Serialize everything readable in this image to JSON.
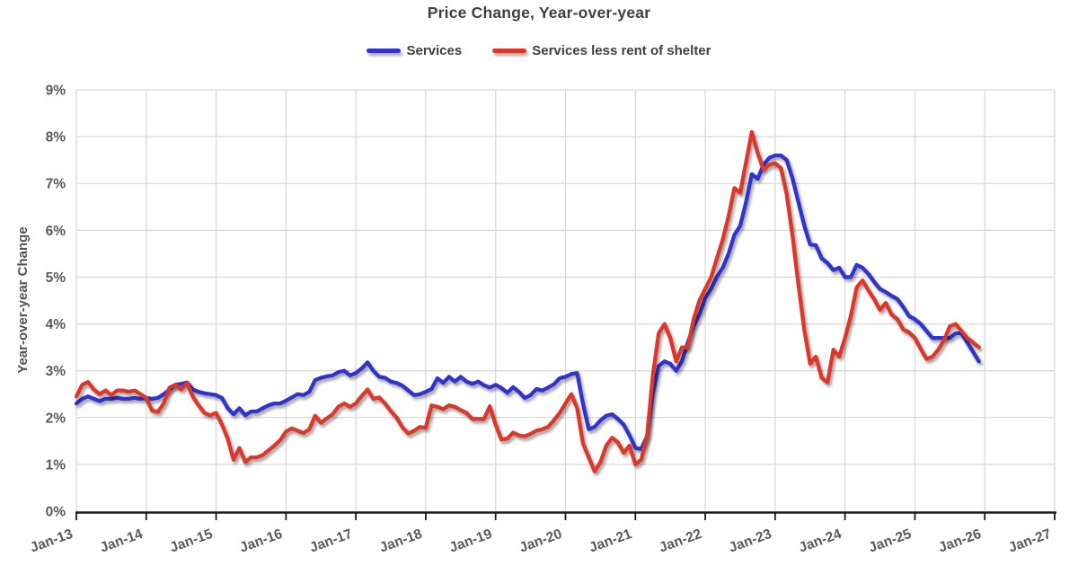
{
  "title": "Price Change, Year-over-year",
  "y_axis_title": "Year-over-year Change",
  "legend": [
    {
      "label": "Services",
      "color": "#3333cc"
    },
    {
      "label": "Services less rent of shelter",
      "color": "#d9372b"
    }
  ],
  "colors": {
    "gridline": "#d9d9d9",
    "axis_line": "#1a1a1a",
    "tick_label": "#595959",
    "title_text": "#3f3f3f"
  },
  "chart_data": {
    "type": "line",
    "title": "Price Change, Year-over-year",
    "xlabel": "",
    "ylabel": "Year-over-year Change",
    "grid": true,
    "legend_position": "top",
    "ylim": [
      0,
      9
    ],
    "y_tick_labels": [
      "0%",
      "1%",
      "2%",
      "3%",
      "4%",
      "5%",
      "6%",
      "7%",
      "8%",
      "9%"
    ],
    "x_tick_labels": [
      "Jan-13",
      "Jan-14",
      "Jan-15",
      "Jan-16",
      "Jan-17",
      "Jan-18",
      "Jan-19",
      "Jan-20",
      "Jan-21",
      "Jan-22",
      "Jan-23",
      "Jan-24",
      "Jan-25",
      "Jan-26",
      "Jan-27"
    ],
    "x_unit": "month",
    "x_start": "2013-01",
    "x_axis_end": "2027-01",
    "series": [
      {
        "name": "Services",
        "color": "#3333cc",
        "start": "2013-01",
        "values": [
          2.3,
          2.4,
          2.45,
          2.4,
          2.35,
          2.4,
          2.4,
          2.42,
          2.4,
          2.4,
          2.42,
          2.4,
          2.42,
          2.4,
          2.42,
          2.5,
          2.6,
          2.7,
          2.72,
          2.75,
          2.6,
          2.55,
          2.52,
          2.5,
          2.48,
          2.42,
          2.2,
          2.07,
          2.2,
          2.05,
          2.13,
          2.13,
          2.2,
          2.26,
          2.3,
          2.3,
          2.36,
          2.43,
          2.5,
          2.48,
          2.55,
          2.8,
          2.85,
          2.88,
          2.9,
          2.97,
          3.0,
          2.9,
          2.95,
          3.05,
          3.18,
          3.0,
          2.87,
          2.85,
          2.77,
          2.74,
          2.68,
          2.58,
          2.48,
          2.5,
          2.55,
          2.61,
          2.84,
          2.74,
          2.87,
          2.77,
          2.87,
          2.77,
          2.72,
          2.77,
          2.69,
          2.64,
          2.7,
          2.63,
          2.53,
          2.65,
          2.55,
          2.42,
          2.48,
          2.61,
          2.58,
          2.64,
          2.71,
          2.84,
          2.87,
          2.93,
          2.95,
          2.3,
          1.75,
          1.8,
          1.94,
          2.04,
          2.07,
          1.97,
          1.85,
          1.62,
          1.35,
          1.33,
          1.6,
          2.5,
          3.1,
          3.2,
          3.15,
          3.0,
          3.2,
          3.6,
          3.95,
          4.2,
          4.55,
          4.75,
          5.0,
          5.2,
          5.5,
          5.9,
          6.1,
          6.6,
          7.2,
          7.1,
          7.4,
          7.55,
          7.6,
          7.6,
          7.5,
          7.1,
          6.6,
          6.1,
          5.7,
          5.68,
          5.4,
          5.3,
          5.15,
          5.2,
          5.0,
          5.0,
          5.26,
          5.2,
          5.07,
          4.9,
          4.75,
          4.68,
          4.6,
          4.53,
          4.36,
          4.17,
          4.1,
          4.0,
          3.85,
          3.7,
          3.7,
          3.7,
          3.7,
          3.8,
          3.8,
          3.6,
          3.4,
          3.2
        ]
      },
      {
        "name": "Services less rent of shelter",
        "color": "#d9372b",
        "start": "2013-01",
        "values": [
          2.45,
          2.7,
          2.76,
          2.6,
          2.5,
          2.58,
          2.48,
          2.58,
          2.58,
          2.55,
          2.58,
          2.5,
          2.42,
          2.15,
          2.12,
          2.3,
          2.64,
          2.7,
          2.6,
          2.74,
          2.45,
          2.26,
          2.1,
          2.05,
          2.1,
          1.85,
          1.55,
          1.1,
          1.35,
          1.05,
          1.15,
          1.15,
          1.2,
          1.3,
          1.4,
          1.52,
          1.7,
          1.77,
          1.72,
          1.67,
          1.75,
          2.04,
          1.89,
          1.98,
          2.07,
          2.23,
          2.3,
          2.23,
          2.3,
          2.46,
          2.6,
          2.4,
          2.43,
          2.3,
          2.14,
          2.0,
          1.79,
          1.66,
          1.72,
          1.8,
          1.78,
          2.26,
          2.23,
          2.18,
          2.26,
          2.23,
          2.16,
          2.1,
          1.97,
          1.97,
          1.97,
          2.24,
          1.85,
          1.53,
          1.55,
          1.68,
          1.62,
          1.6,
          1.65,
          1.72,
          1.75,
          1.8,
          1.94,
          2.1,
          2.3,
          2.5,
          2.2,
          1.45,
          1.15,
          0.85,
          1.05,
          1.4,
          1.57,
          1.47,
          1.25,
          1.4,
          1.0,
          1.1,
          1.6,
          2.9,
          3.8,
          4.0,
          3.7,
          3.2,
          3.5,
          3.5,
          4.1,
          4.5,
          4.75,
          5.0,
          5.4,
          5.8,
          6.3,
          6.9,
          6.8,
          7.45,
          8.1,
          7.65,
          7.3,
          7.4,
          7.43,
          7.33,
          6.76,
          5.87,
          4.84,
          3.88,
          3.15,
          3.3,
          2.85,
          2.75,
          3.45,
          3.3,
          3.7,
          4.17,
          4.78,
          4.93,
          4.72,
          4.53,
          4.3,
          4.45,
          4.2,
          4.1,
          3.88,
          3.82,
          3.7,
          3.47,
          3.25,
          3.3,
          3.45,
          3.65,
          3.95,
          4.0,
          3.85,
          3.7,
          3.6,
          3.5
        ]
      }
    ]
  }
}
